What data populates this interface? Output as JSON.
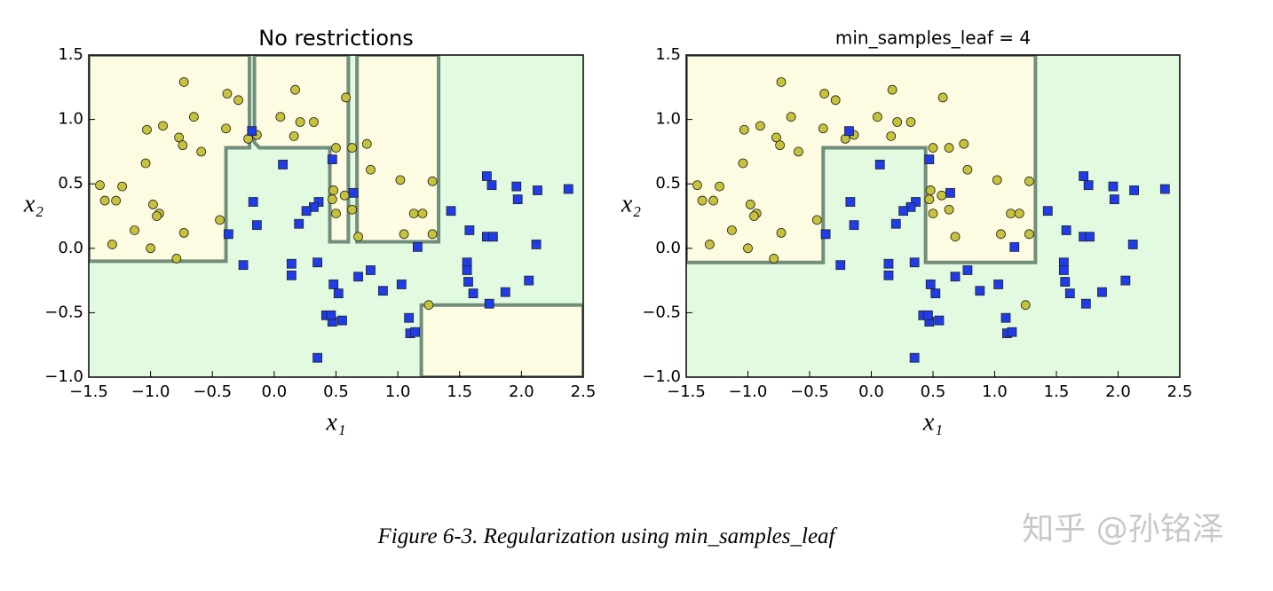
{
  "chart_data": [
    {
      "type": "scatter",
      "title": "No restrictions",
      "title_size": 24,
      "xlabel": "x₁",
      "ylabel": "x₂",
      "xlim": [
        -1.5,
        2.5
      ],
      "ylim": [
        -1.0,
        1.5
      ],
      "xticks": [
        {
          "value": -1.5,
          "label": "−1.5"
        },
        {
          "value": -1.0,
          "label": "−1.0"
        },
        {
          "value": -0.5,
          "label": "−0.5"
        },
        {
          "value": 0.0,
          "label": "0.0"
        },
        {
          "value": 0.5,
          "label": "0.5"
        },
        {
          "value": 1.0,
          "label": "1.0"
        },
        {
          "value": 1.5,
          "label": "1.5"
        },
        {
          "value": 2.0,
          "label": "2.0"
        },
        {
          "value": 2.5,
          "label": "2.5"
        }
      ],
      "yticks": [
        {
          "value": -1.0,
          "label": "−1.0"
        },
        {
          "value": -0.5,
          "label": "−0.5"
        },
        {
          "value": 0.0,
          "label": "0.0"
        },
        {
          "value": 0.5,
          "label": "0.5"
        },
        {
          "value": 1.0,
          "label": "1.0"
        },
        {
          "value": 1.5,
          "label": "1.5"
        }
      ],
      "background": "#e2fbe0",
      "boundary_color": "#5b7a68",
      "regions": [
        {
          "color": "#fdfbe2",
          "x": [
            -1.5,
            -0.2,
            -0.2,
            -0.39,
            -0.39,
            -1.5
          ],
          "y": [
            1.5,
            1.5,
            0.78,
            0.78,
            -0.1,
            -0.1
          ]
        },
        {
          "color": "#fdfbe2",
          "x": [
            -0.16,
            0.6,
            0.6,
            0.45,
            0.45,
            -0.12,
            -0.16
          ],
          "y": [
            1.5,
            1.5,
            0.05,
            0.05,
            0.78,
            0.78,
            0.82
          ]
        },
        {
          "color": "#fdfbe2",
          "x": [
            0.67,
            1.33,
            1.33,
            0.67
          ],
          "y": [
            1.5,
            1.5,
            0.05,
            0.05
          ]
        },
        {
          "color": "#fdfbe2",
          "x": [
            1.19,
            1.19,
            2.5,
            2.5
          ],
          "y": [
            -1.0,
            -0.44,
            -0.44,
            -1.0
          ]
        }
      ],
      "series": [
        {
          "marker": "o",
          "color": "#c6c23a",
          "x": [
            -0.73,
            -0.38,
            -0.29,
            0.17,
            0.58,
            -1.03,
            -0.9,
            -0.65,
            -0.77,
            -0.74,
            -0.59,
            -0.39,
            -0.21,
            -0.14,
            0.05,
            0.21,
            0.16,
            0.32,
            0.5,
            0.63,
            0.75,
            0.78,
            -1.04,
            -1.41,
            -1.28,
            -1.23,
            -1.37,
            -0.98,
            -0.93,
            -0.95,
            -1.13,
            -1.0,
            -1.31,
            -0.73,
            -0.79,
            -0.44,
            0.48,
            0.47,
            0.57,
            0.63,
            0.5,
            0.68,
            1.02,
            1.28,
            1.13,
            1.2,
            1.05,
            1.28,
            1.25
          ],
          "values": [
            1.29,
            1.2,
            1.15,
            1.23,
            1.17,
            0.92,
            0.95,
            1.02,
            0.86,
            0.8,
            0.75,
            0.93,
            0.85,
            0.88,
            1.02,
            0.98,
            0.87,
            0.98,
            0.78,
            0.78,
            0.81,
            0.61,
            0.66,
            0.49,
            0.37,
            0.48,
            0.37,
            0.34,
            0.27,
            0.25,
            0.14,
            0.0,
            0.03,
            0.12,
            -0.08,
            0.22,
            0.45,
            0.38,
            0.41,
            0.3,
            0.27,
            0.09,
            0.53,
            0.52,
            0.27,
            0.27,
            0.11,
            0.11,
            -0.44
          ]
        },
        {
          "marker": "s",
          "color": "#1f3ce8",
          "x": [
            -0.18,
            0.07,
            0.47,
            -0.17,
            -0.14,
            -0.37,
            0.64,
            0.36,
            0.32,
            0.26,
            0.2,
            -0.25,
            0.14,
            0.14,
            0.35,
            0.48,
            0.52,
            0.78,
            0.68,
            0.88,
            1.03,
            0.42,
            0.47,
            0.46,
            0.55,
            0.35,
            1.09,
            1.1,
            1.14,
            1.16,
            1.43,
            1.58,
            1.72,
            1.76,
            1.96,
            1.97,
            2.13,
            2.38,
            1.72,
            1.77,
            2.12,
            1.56,
            1.56,
            1.57,
            1.61,
            1.74,
            1.87,
            2.06
          ],
          "values": [
            0.91,
            0.65,
            0.69,
            0.36,
            0.18,
            0.11,
            0.43,
            0.36,
            0.32,
            0.29,
            0.19,
            -0.13,
            -0.12,
            -0.21,
            -0.11,
            -0.28,
            -0.35,
            -0.17,
            -0.22,
            -0.33,
            -0.28,
            -0.52,
            -0.57,
            -0.52,
            -0.56,
            -0.85,
            -0.54,
            -0.66,
            -0.65,
            0.01,
            0.29,
            0.14,
            0.56,
            0.49,
            0.48,
            0.38,
            0.45,
            0.46,
            0.09,
            0.09,
            0.03,
            -0.11,
            -0.17,
            -0.26,
            -0.35,
            -0.43,
            -0.34,
            -0.25
          ]
        }
      ]
    },
    {
      "type": "scatter",
      "title": "min_samples_leaf = 4",
      "title_size": 20,
      "xlabel": "x₁",
      "ylabel": "x₂",
      "xlim": [
        -1.5,
        2.5
      ],
      "ylim": [
        -1.0,
        1.5
      ],
      "xticks": [
        {
          "value": -1.5,
          "label": "−1.5"
        },
        {
          "value": -1.0,
          "label": "−1.0"
        },
        {
          "value": -0.5,
          "label": "−0.5"
        },
        {
          "value": 0.0,
          "label": "0.0"
        },
        {
          "value": 0.5,
          "label": "0.5"
        },
        {
          "value": 1.0,
          "label": "1.0"
        },
        {
          "value": 1.5,
          "label": "1.5"
        },
        {
          "value": 2.0,
          "label": "2.0"
        },
        {
          "value": 2.5,
          "label": "2.5"
        }
      ],
      "yticks": [
        {
          "value": -1.0,
          "label": "−1.0"
        },
        {
          "value": -0.5,
          "label": "−0.5"
        },
        {
          "value": 0.0,
          "label": "0.0"
        },
        {
          "value": 0.5,
          "label": "0.5"
        },
        {
          "value": 1.0,
          "label": "1.0"
        },
        {
          "value": 1.5,
          "label": "1.5"
        }
      ],
      "background": "#e2fbe0",
      "boundary_color": "#5b7a68",
      "regions": [
        {
          "color": "#fdfbe2",
          "x": [
            -1.5,
            1.33,
            1.33,
            0.44,
            0.44,
            -0.39,
            -0.39,
            -1.5
          ],
          "y": [
            1.5,
            1.5,
            -0.11,
            -0.11,
            0.78,
            0.78,
            -0.11,
            -0.11
          ]
        }
      ],
      "series": [
        {
          "marker": "o",
          "color": "#c6c23a",
          "x": [
            -0.73,
            -0.38,
            -0.29,
            0.17,
            0.58,
            -1.03,
            -0.9,
            -0.65,
            -0.77,
            -0.74,
            -0.59,
            -0.39,
            -0.21,
            -0.14,
            0.05,
            0.21,
            0.16,
            0.32,
            0.5,
            0.63,
            0.75,
            0.78,
            -1.04,
            -1.41,
            -1.28,
            -1.23,
            -1.37,
            -0.98,
            -0.93,
            -0.95,
            -1.13,
            -1.0,
            -1.31,
            -0.73,
            -0.79,
            -0.44,
            0.48,
            0.47,
            0.57,
            0.63,
            0.5,
            0.68,
            1.02,
            1.28,
            1.13,
            1.2,
            1.05,
            1.28,
            1.25
          ],
          "values": [
            1.29,
            1.2,
            1.15,
            1.23,
            1.17,
            0.92,
            0.95,
            1.02,
            0.86,
            0.8,
            0.75,
            0.93,
            0.85,
            0.88,
            1.02,
            0.98,
            0.87,
            0.98,
            0.78,
            0.78,
            0.81,
            0.61,
            0.66,
            0.49,
            0.37,
            0.48,
            0.37,
            0.34,
            0.27,
            0.25,
            0.14,
            0.0,
            0.03,
            0.12,
            -0.08,
            0.22,
            0.45,
            0.38,
            0.41,
            0.3,
            0.27,
            0.09,
            0.53,
            0.52,
            0.27,
            0.27,
            0.11,
            0.11,
            -0.44
          ]
        },
        {
          "marker": "s",
          "color": "#1f3ce8",
          "x": [
            -0.18,
            0.07,
            0.47,
            -0.17,
            -0.14,
            -0.37,
            0.64,
            0.36,
            0.32,
            0.26,
            0.2,
            -0.25,
            0.14,
            0.14,
            0.35,
            0.48,
            0.52,
            0.78,
            0.68,
            0.88,
            1.03,
            0.42,
            0.47,
            0.46,
            0.55,
            0.35,
            1.09,
            1.1,
            1.14,
            1.16,
            1.43,
            1.58,
            1.72,
            1.76,
            1.96,
            1.97,
            2.13,
            2.38,
            1.72,
            1.77,
            2.12,
            1.56,
            1.56,
            1.57,
            1.61,
            1.74,
            1.87,
            2.06
          ],
          "values": [
            0.91,
            0.65,
            0.69,
            0.36,
            0.18,
            0.11,
            0.43,
            0.36,
            0.32,
            0.29,
            0.19,
            -0.13,
            -0.12,
            -0.21,
            -0.11,
            -0.28,
            -0.35,
            -0.17,
            -0.22,
            -0.33,
            -0.28,
            -0.52,
            -0.57,
            -0.52,
            -0.56,
            -0.85,
            -0.54,
            -0.66,
            -0.65,
            0.01,
            0.29,
            0.14,
            0.56,
            0.49,
            0.48,
            0.38,
            0.45,
            0.46,
            0.09,
            0.09,
            0.03,
            -0.11,
            -0.17,
            -0.26,
            -0.35,
            -0.43,
            -0.34,
            -0.25
          ]
        }
      ]
    }
  ],
  "caption": "Figure 6-3. Regularization using min_samples_leaf",
  "watermark": "知乎 @孙铭泽"
}
